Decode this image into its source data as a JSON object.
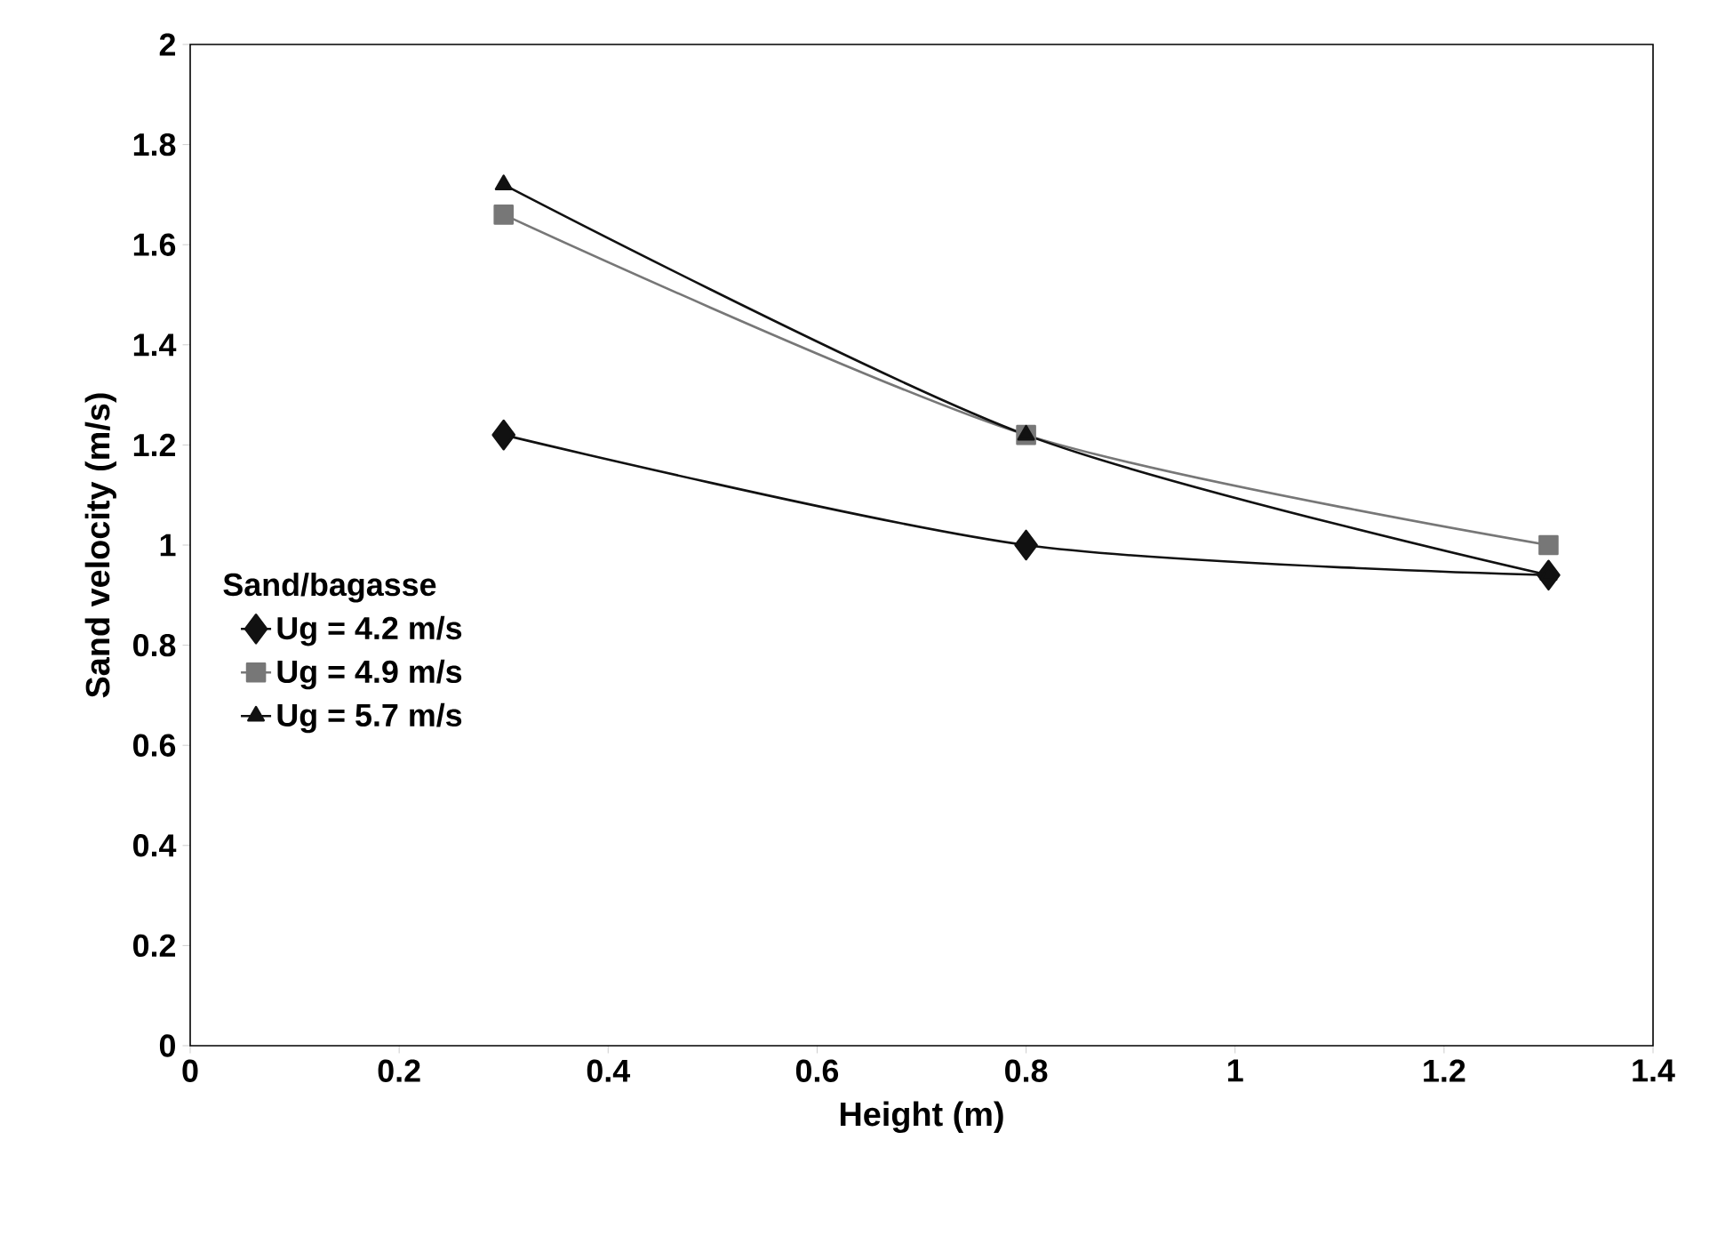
{
  "chart_data": {
    "type": "line",
    "xlabel": "Height (m)",
    "ylabel": "Sand velocity (m/s)",
    "legend_title": "Sand/bagasse",
    "x": [
      0.3,
      0.8,
      1.3
    ],
    "series": [
      {
        "name": "Ug = 4.2 m/s",
        "color": "#111111",
        "marker": "diamond",
        "values": [
          1.22,
          1.0,
          0.94
        ]
      },
      {
        "name": "Ug = 4.9 m/s",
        "color": "#777777",
        "marker": "square",
        "values": [
          1.66,
          1.22,
          1.0
        ]
      },
      {
        "name": "Ug = 5.7 m/s",
        "color": "#111111",
        "marker": "triangle",
        "values": [
          1.72,
          1.22,
          0.94
        ]
      }
    ],
    "xlim": [
      0,
      1.4
    ],
    "xticks": [
      0,
      0.2,
      0.4,
      0.6,
      0.8,
      1,
      1.2,
      1.4
    ],
    "ylim": [
      0,
      2
    ],
    "yticks": [
      0,
      0.2,
      0.4,
      0.6,
      0.8,
      1,
      1.2,
      1.4,
      1.6,
      1.8,
      2
    ],
    "grid": false,
    "legend": "bottom left",
    "line_style": "solid"
  }
}
